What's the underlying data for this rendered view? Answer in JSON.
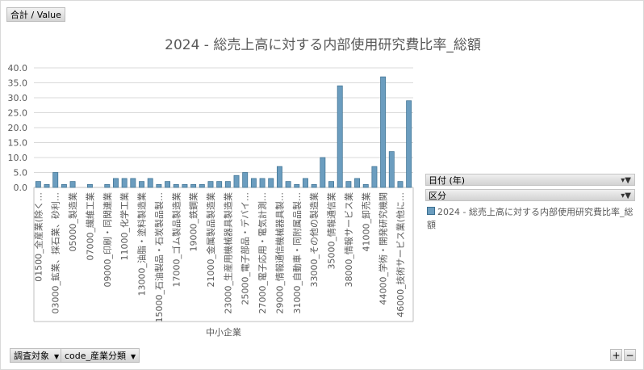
{
  "value_button": "合計 / Value",
  "filters": {
    "survey_label": "調査対象",
    "code_label": "code_産業分類"
  },
  "legend": {
    "date_label": "日付 (年)",
    "category_label": "区分",
    "series_label": "2024 - 総売上高に対する内部使用研究費比率_総額"
  },
  "zoom": {
    "plus": "+",
    "minus": "−"
  },
  "colors": {
    "bar_fill": "#6b9dbf",
    "bar_stroke": "#3b6f90",
    "grid": "#d9d9d9",
    "text": "#595959"
  },
  "chart_data": {
    "type": "bar",
    "title": "2024 - 総売上高に対する内部使用研究費比率_総額",
    "xlabel": "中小企業",
    "ylabel": "",
    "ylim": [
      0,
      40
    ],
    "yticks": [
      "0.0",
      "5.0",
      "10.0",
      "15.0",
      "20.0",
      "25.0",
      "30.0",
      "35.0",
      "40.0"
    ],
    "grid": true,
    "legend_position": "right",
    "categories": [
      "01500_全産業(除く…",
      "",
      "03000_鉱業、採石業、砂利…",
      "",
      "05000_製造業",
      "",
      "07000_繊維工業",
      "",
      "09000_印刷・同関連業",
      "",
      "11000_化学工業",
      "",
      "13000_油脂・塗料製造業",
      "",
      "15000_石油製品・石炭製品製…",
      "",
      "17000_ゴム製品製造業",
      "",
      "19000_鉄鋼業",
      "",
      "21000_金属製品製造業",
      "",
      "23000_生産用機械器具製造業",
      "",
      "25000_電子部品・デバイ…",
      "",
      "27000_電子応用・電気計測…",
      "",
      "29000_情報通信機械器具製…",
      "",
      "31000_自動車・同附属品製…",
      "",
      "33000_その他の製造業",
      "",
      "35000_情報通信業",
      "",
      "38000_情報サービス業",
      "",
      "41000_卸売業",
      "",
      "44000_学術・開発研究機関",
      "",
      "46000_技術サービス業(他に…",
      ""
    ],
    "values": [
      2,
      1,
      5,
      1,
      2,
      0,
      1,
      0,
      1,
      3,
      3,
      3,
      2,
      3,
      1,
      2,
      1,
      1,
      1,
      1,
      2,
      2,
      2,
      4,
      5,
      3,
      3,
      3,
      7,
      2,
      1,
      3,
      1,
      10,
      2,
      34,
      2,
      3,
      1,
      7,
      37,
      12,
      2,
      29
    ]
  }
}
